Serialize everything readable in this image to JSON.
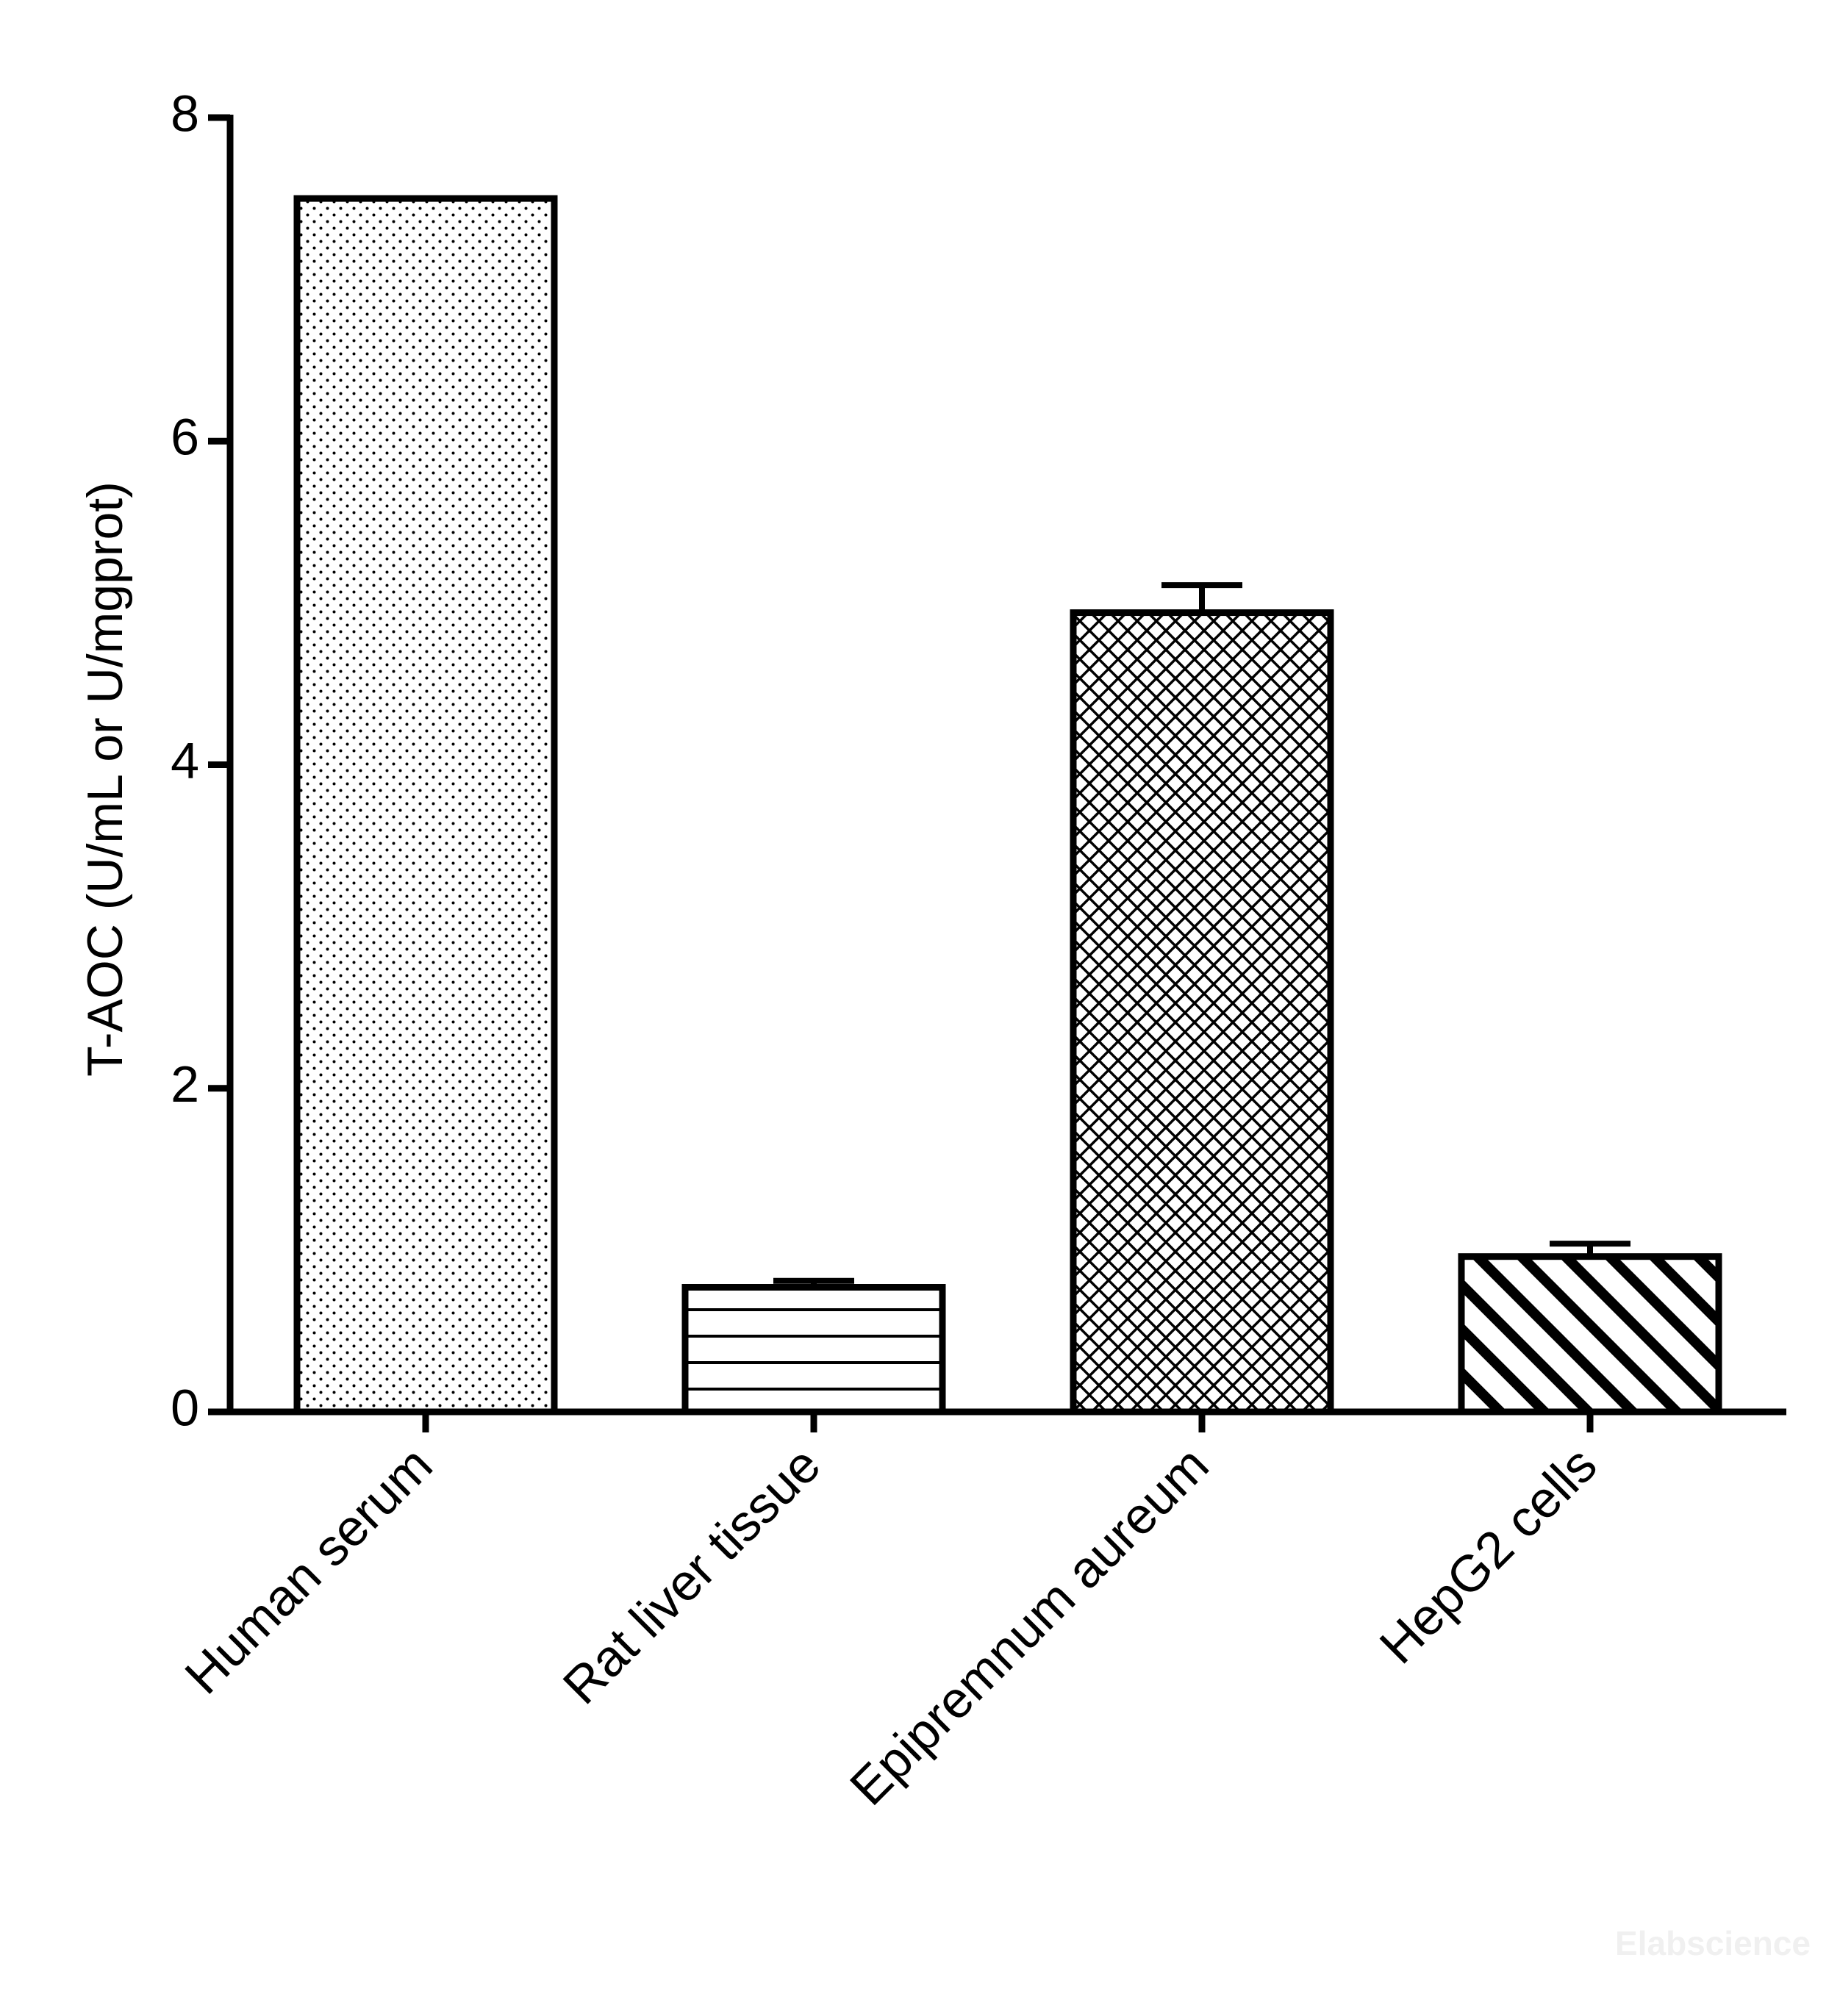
{
  "chart_data": {
    "type": "bar",
    "y_label": "T-AOC (U/mL or U/mgprot)",
    "categories": [
      "Human serum",
      "Rat liver tissue",
      "Epipremnum aureum",
      "HepG2 cells"
    ],
    "values": [
      7.5,
      0.77,
      4.94,
      0.96
    ],
    "errors": [
      null,
      0.04,
      0.17,
      0.08
    ],
    "patterns": [
      "dots",
      "hlines",
      "crosshatch",
      "diagonal"
    ],
    "color": "#000000",
    "ylim": [
      0,
      8
    ],
    "yticks": [
      0,
      2,
      4,
      6,
      8
    ],
    "grid": false,
    "watermark": "Elabscience"
  }
}
